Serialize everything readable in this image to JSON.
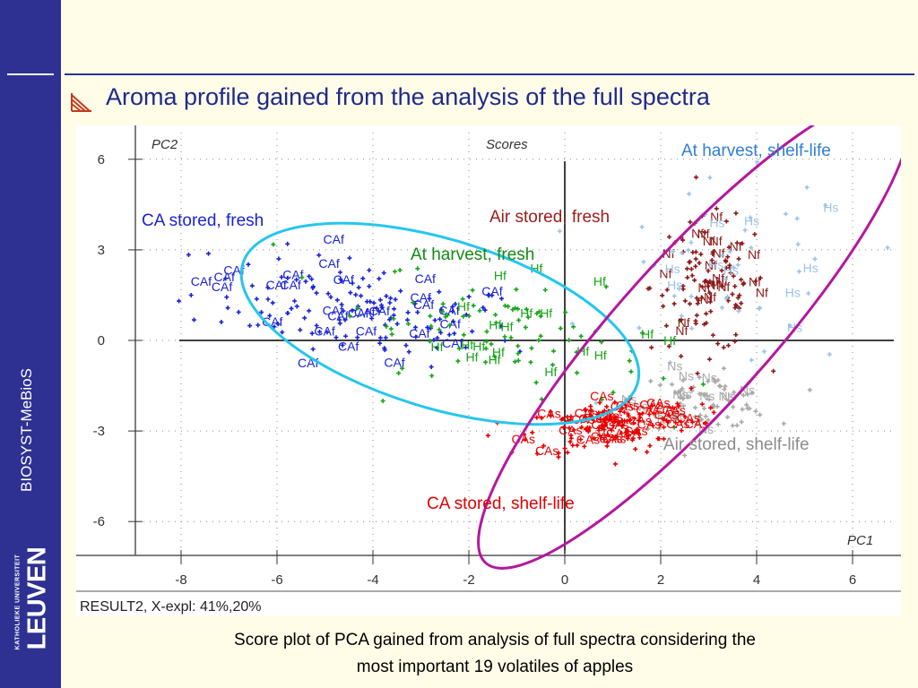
{
  "slide": {
    "title": "Aroma profile gained from the analysis of the full spectra",
    "caption_line1": "Score plot of PCA gained from analysis of full spectra considering the",
    "caption_line2": "most important 19 volatiles of apples",
    "brand": "BIOSYST-MeBioS",
    "logo_university": "KATHOLIEKE UNIVERSITEIT",
    "logo_name": "LEUVEN"
  },
  "colors": {
    "sidebar": "#2e3192",
    "background": "#fffde8",
    "ca_fresh": "#1a23d6",
    "harvest_fresh": "#16a516",
    "air_fresh": "#8b1a1a",
    "harvest_shelf": "#9cc3ea",
    "air_shelf": "#a9a9a9",
    "ca_shelf": "#e60000",
    "ellipse_fresh": "#25c6ee",
    "ellipse_shelf": "#b5179e"
  },
  "chart_data": {
    "type": "scatter",
    "title": "Scores",
    "xlabel": "PC1",
    "ylabel": "PC2",
    "xlim": [
      -9,
      7
    ],
    "ylim": [
      -7,
      6.5
    ],
    "xticks": [
      -8,
      -6,
      -4,
      -2,
      0,
      2,
      4,
      6
    ],
    "yticks": [
      6,
      3,
      0,
      -3,
      -6
    ],
    "grid": true,
    "footer": "RESULT2, X-expl: 41%,20%",
    "series": [
      {
        "key": "ca_fresh",
        "label": "CAf",
        "center": [
          -4.3,
          1.0
        ],
        "spread": [
          1.7,
          0.8
        ],
        "angle": -15,
        "n": 170
      },
      {
        "key": "harvest_fresh",
        "label": "Hf",
        "center": [
          -1.2,
          0.3
        ],
        "spread": [
          1.6,
          0.9
        ],
        "angle": -20,
        "n": 110
      },
      {
        "key": "air_fresh",
        "label": "Nf",
        "center": [
          3.0,
          1.8
        ],
        "spread": [
          0.6,
          1.1
        ],
        "angle": 0,
        "n": 130
      },
      {
        "key": "harvest_shelf",
        "label": "Hs",
        "center": [
          3.6,
          2.0
        ],
        "spread": [
          1.3,
          1.6
        ],
        "angle": 0,
        "n": 60
      },
      {
        "key": "air_shelf",
        "label": "Ns",
        "center": [
          2.9,
          -2.0
        ],
        "spread": [
          0.7,
          0.45
        ],
        "angle": 0,
        "n": 90
      },
      {
        "key": "ca_shelf",
        "label": "CAs",
        "center": [
          1.0,
          -2.8
        ],
        "spread": [
          0.9,
          0.45
        ],
        "angle": 10,
        "n": 190
      }
    ],
    "group_labels": [
      {
        "text": "CA stored, fresh",
        "color": "#1a23d6"
      },
      {
        "text": "Air stored, fresh",
        "color": "#9b1b1b"
      },
      {
        "text": "At harvest, fresh",
        "color": "#138a13"
      },
      {
        "text": "At harvest, shelf-life",
        "color": "#2f7fd6"
      },
      {
        "text": "Air stored, shelf-life",
        "color": "#8c8c8c"
      },
      {
        "text": "CA stored, shelf-life",
        "color": "#e00000"
      }
    ],
    "ellipses": [
      {
        "key": "ellipse_fresh",
        "center": [
          -2.6,
          0.55
        ],
        "rx": 4.3,
        "ry": 1.8,
        "angle": -17
      },
      {
        "key": "ellipse_shelf",
        "center": [
          2.7,
          0.3
        ],
        "rx": 6.5,
        "ry": 1.6,
        "angle": 48
      }
    ]
  }
}
